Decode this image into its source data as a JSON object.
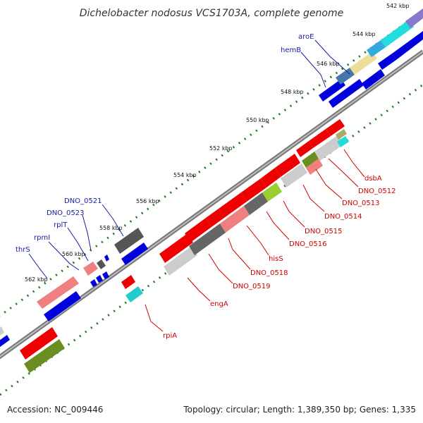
{
  "title": "Dichelobacter nodosus VCS1703A, complete genome",
  "footer": {
    "accession": "Accession: NC_009446",
    "summary": "Topology: circular; Length: 1,389,350 bp; Genes: 1,335"
  },
  "scale_ticks": [
    "542 kbp",
    "544 kbp",
    "546 kbp",
    "548 kbp",
    "550 kbp",
    "552 kbp",
    "554 kbp",
    "556 kbp",
    "558 kbp",
    "560 kbp",
    "562 kbp"
  ],
  "forward_genes": [
    "aroE",
    "hemB",
    "DNO_0521",
    "DNO_0523",
    "rplT",
    "rpmI",
    "thrS"
  ],
  "reverse_genes": [
    "dsbA",
    "DNO_0512",
    "DNO_0513",
    "DNO_0514",
    "DNO_0515",
    "DNO_0516",
    "hisS",
    "DNO_0518",
    "DNO_0519",
    "engA",
    "rpiA"
  ],
  "colors": {
    "forward_label": "#1a1aaa",
    "reverse_label": "#cc0000",
    "forward_gene": "#0000dd",
    "reverse_gene": "#ee0000",
    "backbone": "#888888",
    "tick": "#1a7a1a"
  }
}
